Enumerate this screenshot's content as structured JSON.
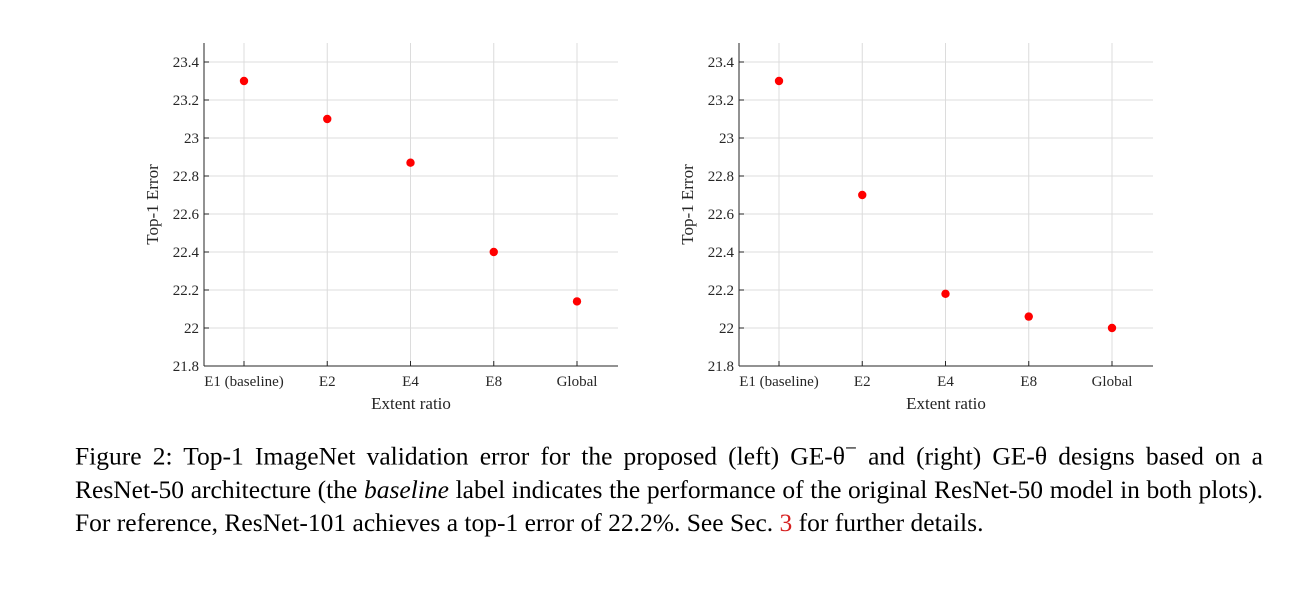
{
  "chart_data": [
    {
      "type": "scatter",
      "title": "",
      "xlabel": "Extent ratio",
      "ylabel": "Top-1 Error",
      "categories": [
        "E1 (baseline)",
        "E2",
        "E4",
        "E8",
        "Global"
      ],
      "values": [
        23.3,
        23.1,
        22.87,
        22.4,
        22.14
      ],
      "ylim": [
        21.8,
        23.5
      ],
      "yticks": [
        "21.8",
        "22",
        "22.2",
        "22.4",
        "22.6",
        "22.8",
        "23",
        "23.2",
        "23.4"
      ],
      "grid": true,
      "marker_color": "#ff0000"
    },
    {
      "type": "scatter",
      "title": "",
      "xlabel": "Extent ratio",
      "ylabel": "Top-1 Error",
      "categories": [
        "E1 (baseline)",
        "E2",
        "E4",
        "E8",
        "Global"
      ],
      "values": [
        23.3,
        22.7,
        22.18,
        22.06,
        22.0
      ],
      "ylim": [
        21.8,
        23.5
      ],
      "yticks": [
        "21.8",
        "22",
        "22.2",
        "22.4",
        "22.6",
        "22.8",
        "23",
        "23.2",
        "23.4"
      ],
      "grid": true,
      "marker_color": "#ff0000"
    }
  ],
  "caption": {
    "prefix": "Figure 2: Top-1 ImageNet validation error for the proposed (left) GE-θ",
    "sup": "−",
    "mid1": " and (right) GE-θ designs based on a ResNet-50 architecture (the ",
    "italic": "baseline",
    "mid2": " label indicates the performance of the original ResNet-50 model in both plots). For reference, ResNet-101 achieves a top-1 error of 22.2%. See Sec. ",
    "ref": "3",
    "suffix": " for further details."
  }
}
